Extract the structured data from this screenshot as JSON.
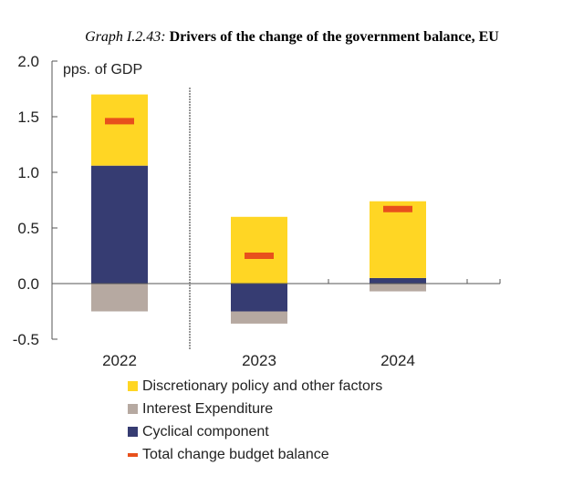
{
  "chart_data": {
    "type": "bar",
    "stacked": true,
    "title_prefix": "Graph I.2.43:",
    "title": "Drivers of the change of the government balance, EU",
    "ylabel": "pps. of GDP",
    "xlabel": "",
    "ylim": [
      -0.5,
      2.0
    ],
    "yticks": [
      "2.0",
      "1.5",
      "1.0",
      "0.5",
      "0.0",
      "-0.5"
    ],
    "ytick_values": [
      2.0,
      1.5,
      1.0,
      0.5,
      0.0,
      -0.5
    ],
    "categories": [
      "2022",
      "2023",
      "2024"
    ],
    "grid": false,
    "legend_position": "bottom",
    "series": [
      {
        "name": "Discretionary policy and other factors",
        "kind": "bar",
        "color": "#FFD624",
        "values": [
          0.64,
          0.6,
          0.69
        ]
      },
      {
        "name": "Interest Expenditure",
        "kind": "bar",
        "color": "#B6A9A1",
        "values": [
          -0.25,
          -0.11,
          -0.07
        ]
      },
      {
        "name": "Cyclical component",
        "kind": "bar",
        "color": "#363C72",
        "values": [
          1.06,
          -0.25,
          0.05
        ]
      },
      {
        "name": "Total change budget balance",
        "kind": "marker",
        "color": "#E8501C",
        "values": [
          1.46,
          0.25,
          0.67
        ]
      }
    ]
  }
}
